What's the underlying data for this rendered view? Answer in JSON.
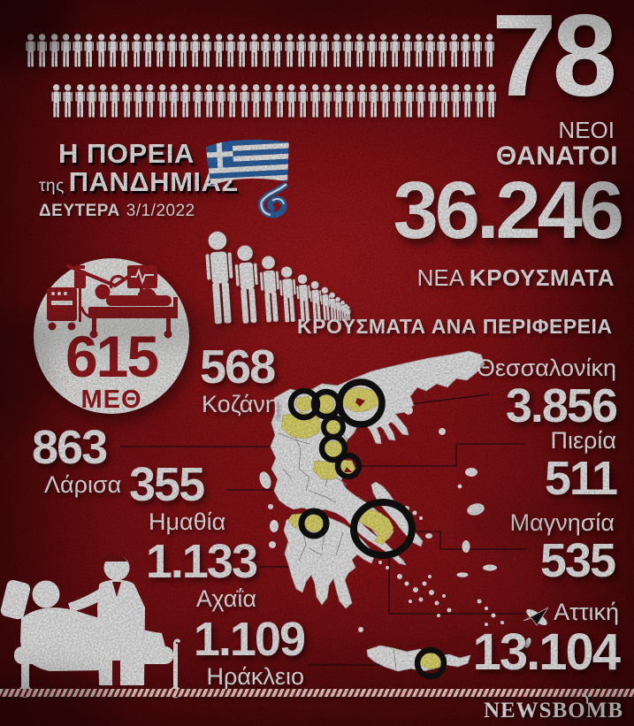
{
  "colors": {
    "background": "#8a1116",
    "accent_yellow": "#f7ee76",
    "text": "#ffffff",
    "icu_red": "#a11b20",
    "ring_black": "#111111",
    "map_white": "#ffffff"
  },
  "pictograms": {
    "row1_count": 40,
    "row2_count": 38,
    "crowd_count": 12
  },
  "deaths": {
    "value": "78",
    "label_line1": "ΝΕΟΙ",
    "label_line2": "ΘΑΝΑΤΟΙ"
  },
  "title": {
    "line1": "Η ΠΟΡΕΙΑ",
    "article": "της",
    "line2": "ΠΑΝΔΗΜΙΑΣ",
    "day": "ΔΕΥΤΕΡΑ",
    "date": "3/1/2022"
  },
  "cases": {
    "value": "36.246",
    "label_regular": "ΝΕΑ",
    "label_bold": "ΚΡΟΥΣΜΑΤΑ"
  },
  "icu": {
    "value": "615",
    "label": "ΜΕΘ"
  },
  "map_section": {
    "title": "ΚΡΟΥΣΜΑΤΑ ΑΝΑ ΠΕΡΙΦΕΡΕΙΑ"
  },
  "regions": {
    "kozani": {
      "value": "568",
      "name": "Κοζάνη"
    },
    "thessaloniki": {
      "name": "Θεσσαλονίκη",
      "value": "3.856"
    },
    "larisa": {
      "value": "863",
      "name": "Λάρισα"
    },
    "imathia": {
      "value": "355",
      "name": "Ημαθία"
    },
    "pieria": {
      "name": "Πιερία",
      "value": "511"
    },
    "magnisia": {
      "name": "Μαγνησία",
      "value": "535"
    },
    "achaia": {
      "value": "1.133",
      "name": "Αχαΐα"
    },
    "irakleio": {
      "value": "1.109",
      "name": "Ηράκλειο"
    },
    "attiki": {
      "name": "Αττική",
      "value": "13.104"
    }
  },
  "brand": {
    "name": "NEWSBOMB"
  },
  "chart_data": {
    "type": "table",
    "title": "Η ΠΟΡΕΙΑ της ΠΑΝΔΗΜΙΑΣ — ΔΕΥΤΕΡΑ 3/1/2022",
    "subtitle": "ΚΡΟΥΣΜΑΤΑ ΑΝΑ ΠΕΡΙΦΕΡΕΙΑ",
    "totals": {
      "new_deaths": 78,
      "new_cases": 36246,
      "icu_patients": 615
    },
    "categories": [
      "Κοζάνη",
      "Θεσσαλονίκη",
      "Λάρισα",
      "Ημαθία",
      "Πιερία",
      "Μαγνησία",
      "Αχαΐα",
      "Ηράκλειο",
      "Αττική"
    ],
    "values": [
      568,
      3856,
      863,
      355,
      511,
      535,
      1133,
      1109,
      13104
    ],
    "legend_position": "none",
    "grid": false
  }
}
